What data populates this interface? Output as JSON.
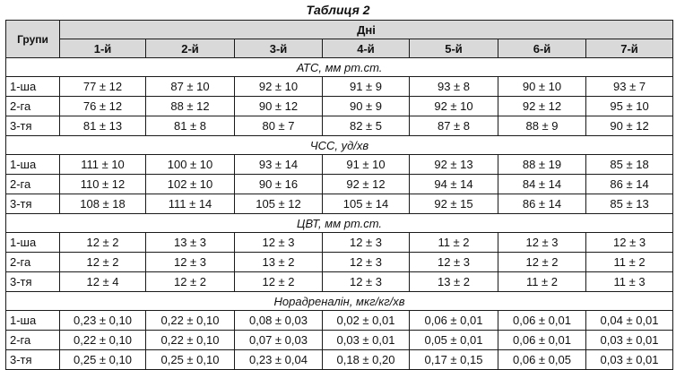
{
  "table_title": "Таблиця 2",
  "headers": {
    "groups": "Групи",
    "days": "Дні",
    "day_labels": [
      "1-й",
      "2-й",
      "3-й",
      "4-й",
      "5-й",
      "6-й",
      "7-й"
    ]
  },
  "sections": [
    {
      "title": "АТС, мм рт.ст.",
      "rows": [
        {
          "group": "1-ша",
          "values": [
            "77 ± 12",
            "87 ± 10",
            "92 ± 10",
            "91 ± 9",
            "93 ± 8",
            "90 ± 10",
            "93 ± 7"
          ]
        },
        {
          "group": "2-га",
          "values": [
            "76 ± 12",
            "88 ± 12",
            "90 ± 12",
            "90 ± 9",
            "92 ± 10",
            "92 ± 12",
            "95 ± 10"
          ]
        },
        {
          "group": "3-тя",
          "values": [
            "81 ± 13",
            "81 ± 8",
            "80 ± 7",
            "82 ± 5",
            "87 ± 8",
            "88 ± 9",
            "90 ± 12"
          ]
        }
      ]
    },
    {
      "title": "ЧСС, уд/хв",
      "rows": [
        {
          "group": "1-ша",
          "values": [
            "111 ± 10",
            "100 ± 10",
            "93 ± 14",
            "91 ± 10",
            "92 ± 13",
            "88 ± 19",
            "85 ± 18"
          ]
        },
        {
          "group": "2-га",
          "values": [
            "110 ± 12",
            "102 ± 10",
            "90 ± 16",
            "92 ± 12",
            "94 ± 14",
            "84 ± 14",
            "86 ± 14"
          ]
        },
        {
          "group": "3-тя",
          "values": [
            "108 ± 18",
            "111 ± 14",
            "105 ± 12",
            "105 ± 14",
            "92 ± 15",
            "86 ± 14",
            "85 ± 13"
          ]
        }
      ]
    },
    {
      "title": "ЦВТ, мм рт.ст.",
      "rows": [
        {
          "group": "1-ша",
          "values": [
            "12 ± 2",
            "13 ± 3",
            "12 ± 3",
            "12 ± 3",
            "11 ± 2",
            "12 ± 3",
            "12 ± 3"
          ]
        },
        {
          "group": "2-га",
          "values": [
            "12 ± 2",
            "12 ± 3",
            "13 ± 2",
            "12 ± 3",
            "12 ± 3",
            "12 ± 2",
            "11 ± 2"
          ]
        },
        {
          "group": "3-тя",
          "values": [
            "12 ± 4",
            "12 ± 2",
            "12 ± 2",
            "12 ± 3",
            "13 ± 2",
            "11 ± 2",
            "11 ± 3"
          ]
        }
      ]
    },
    {
      "title": "Норадреналін, мкг/кг/хв",
      "rows": [
        {
          "group": "1-ша",
          "values": [
            "0,23 ± 0,10",
            "0,22 ± 0,10",
            "0,08 ± 0,03",
            "0,02 ± 0,01",
            "0,06 ± 0,01",
            "0,06 ± 0,01",
            "0,04 ± 0,01"
          ]
        },
        {
          "group": "2-га",
          "values": [
            "0,22 ± 0,10",
            "0,22 ± 0,10",
            "0,07 ± 0,03",
            "0,03 ± 0,01",
            "0,05 ± 0,01",
            "0,06 ± 0,01",
            "0,03 ± 0,01"
          ]
        },
        {
          "group": "3-тя",
          "values": [
            "0,25 ± 0,10",
            "0,25 ± 0,10",
            "0,23 ± 0,04",
            "0,18 ± 0,20",
            "0,17 ± 0,15",
            "0,06 ± 0,05",
            "0,03 ± 0,01"
          ]
        }
      ]
    }
  ]
}
